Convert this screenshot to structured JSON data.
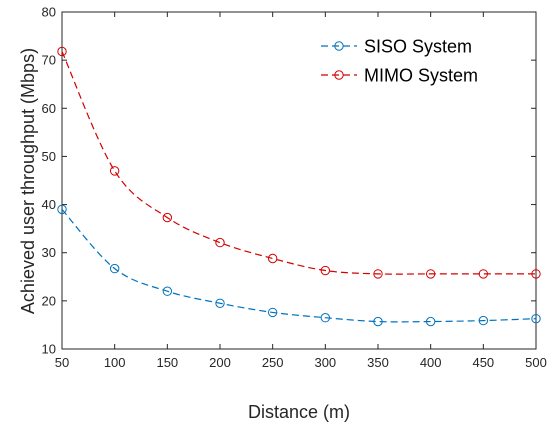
{
  "chart_data": {
    "type": "line",
    "title": "",
    "xlabel": "Distance (m)",
    "ylabel": "Achieved user throughput (Mbps)",
    "xlim": [
      50,
      500
    ],
    "ylim": [
      10,
      80
    ],
    "xticks": [
      50,
      100,
      150,
      200,
      250,
      300,
      350,
      400,
      450,
      500
    ],
    "yticks": [
      10,
      20,
      30,
      40,
      50,
      60,
      70,
      80
    ],
    "grid": false,
    "legend_position": "top-right",
    "x": [
      50,
      100,
      150,
      200,
      250,
      300,
      350,
      400,
      450,
      500
    ],
    "series": [
      {
        "name": "SISO System",
        "color": "#0072BD",
        "line_style": "dashed",
        "marker": "circle",
        "values": [
          39.0,
          26.7,
          22.0,
          19.5,
          17.6,
          16.5,
          15.7,
          15.7,
          15.9,
          16.3
        ]
      },
      {
        "name": "MIMO System",
        "color": "#D40000",
        "line_style": "dashed",
        "marker": "circle",
        "values": [
          71.8,
          47.0,
          37.3,
          32.1,
          28.8,
          26.3,
          25.6,
          25.6,
          25.6,
          25.6
        ]
      }
    ]
  }
}
